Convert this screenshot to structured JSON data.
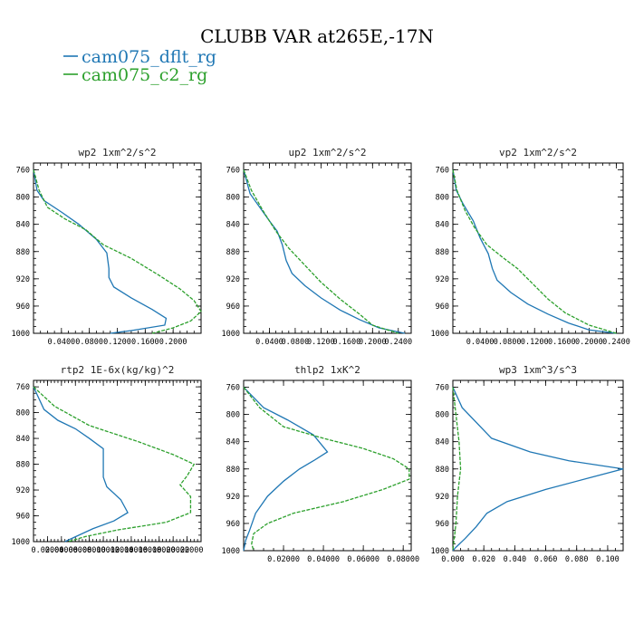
{
  "figure": {
    "title": "CLUBB VAR at265E,-17N",
    "legend": [
      {
        "label": "cam075_dflt_rg",
        "color": "#1f77b4",
        "dash": "solid"
      },
      {
        "label": "cam075_c2_rg",
        "color": "#2ca02c",
        "dash": "dashed"
      }
    ]
  },
  "chart_data": [
    {
      "type": "line",
      "title": "wp2  1xm^2/s^2",
      "xlim": [
        0,
        0.24
      ],
      "ylim": [
        1000,
        750
      ],
      "xticks": [
        0.04,
        0.08,
        0.12,
        0.16,
        0.2
      ],
      "xtick_labels": [
        "0.0400",
        "0.0800",
        "0.1200",
        "0.1600",
        "0.2000"
      ],
      "yticks": [
        760,
        800,
        840,
        880,
        920,
        960,
        1000
      ],
      "series": [
        {
          "name": "cam075_dflt_rg",
          "points": [
            [
              0.0,
              760
            ],
            [
              0.005,
              790
            ],
            [
              0.015,
              805
            ],
            [
              0.04,
              822
            ],
            [
              0.065,
              840
            ],
            [
              0.09,
              862
            ],
            [
              0.105,
              882
            ],
            [
              0.108,
              905
            ],
            [
              0.108,
              918
            ],
            [
              0.115,
              932
            ],
            [
              0.14,
              948
            ],
            [
              0.17,
              965
            ],
            [
              0.19,
              978
            ],
            [
              0.188,
              988
            ],
            [
              0.14,
              996
            ],
            [
              0.11,
              1000
            ]
          ]
        },
        {
          "name": "cam075_c2_rg",
          "points": [
            [
              0.0,
              760
            ],
            [
              0.008,
              790
            ],
            [
              0.02,
              815
            ],
            [
              0.045,
              832
            ],
            [
              0.075,
              848
            ],
            [
              0.1,
              870
            ],
            [
              0.14,
              890
            ],
            [
              0.18,
              915
            ],
            [
              0.21,
              935
            ],
            [
              0.23,
              952
            ],
            [
              0.24,
              968
            ],
            [
              0.225,
              982
            ],
            [
              0.2,
              992
            ],
            [
              0.17,
              1000
            ]
          ]
        }
      ]
    },
    {
      "type": "line",
      "title": "up2  1xm^2/s^2",
      "xlim": [
        0,
        0.26
      ],
      "ylim": [
        1000,
        750
      ],
      "xticks": [
        0.04,
        0.08,
        0.12,
        0.16,
        0.2,
        0.24
      ],
      "xtick_labels": [
        "0.0400",
        "0.0800",
        "0.1200",
        "0.1600",
        "0.2000",
        "0.2400"
      ],
      "yticks": [
        760,
        800,
        840,
        880,
        920,
        960,
        1000
      ],
      "series": [
        {
          "name": "cam075_dflt_rg",
          "points": [
            [
              0.0,
              760
            ],
            [
              0.01,
              795
            ],
            [
              0.025,
              815
            ],
            [
              0.04,
              835
            ],
            [
              0.052,
              850
            ],
            [
              0.06,
              870
            ],
            [
              0.066,
              893
            ],
            [
              0.075,
              912
            ],
            [
              0.095,
              930
            ],
            [
              0.12,
              948
            ],
            [
              0.15,
              966
            ],
            [
              0.18,
              980
            ],
            [
              0.21,
              992
            ],
            [
              0.25,
              1000
            ]
          ]
        },
        {
          "name": "cam075_c2_rg",
          "points": [
            [
              0.0,
              760
            ],
            [
              0.012,
              790
            ],
            [
              0.03,
              820
            ],
            [
              0.05,
              850
            ],
            [
              0.07,
              875
            ],
            [
              0.095,
              900
            ],
            [
              0.12,
              925
            ],
            [
              0.15,
              950
            ],
            [
              0.18,
              972
            ],
            [
              0.2,
              988
            ],
            [
              0.24,
              1000
            ]
          ]
        }
      ]
    },
    {
      "type": "line",
      "title": "vp2  1xm^2/s^2",
      "xlim": [
        0,
        0.25
      ],
      "ylim": [
        1000,
        750
      ],
      "xticks": [
        0.04,
        0.08,
        0.12,
        0.16,
        0.2,
        0.24
      ],
      "xtick_labels": [
        "0.0400",
        "0.0800",
        "0.1200",
        "0.1600",
        "0.2000",
        "0.2400"
      ],
      "yticks": [
        760,
        800,
        840,
        880,
        920,
        960,
        1000
      ],
      "series": [
        {
          "name": "cam075_dflt_rg",
          "points": [
            [
              0.0,
              760
            ],
            [
              0.005,
              790
            ],
            [
              0.015,
              810
            ],
            [
              0.03,
              835
            ],
            [
              0.04,
              860
            ],
            [
              0.052,
              883
            ],
            [
              0.058,
              905
            ],
            [
              0.065,
              922
            ],
            [
              0.085,
              940
            ],
            [
              0.11,
              957
            ],
            [
              0.14,
              972
            ],
            [
              0.17,
              985
            ],
            [
              0.2,
              995
            ],
            [
              0.24,
              1000
            ]
          ]
        },
        {
          "name": "cam075_c2_rg",
          "points": [
            [
              0.0,
              760
            ],
            [
              0.006,
              790
            ],
            [
              0.018,
              820
            ],
            [
              0.032,
              845
            ],
            [
              0.05,
              870
            ],
            [
              0.075,
              890
            ],
            [
              0.095,
              905
            ],
            [
              0.115,
              925
            ],
            [
              0.14,
              950
            ],
            [
              0.165,
              970
            ],
            [
              0.2,
              988
            ],
            [
              0.24,
              1000
            ]
          ]
        }
      ]
    },
    {
      "type": "line",
      "title": "rtp2  1E-6x(kg/kg)^2",
      "xlim": [
        0,
        0.24
      ],
      "ylim": [
        1000,
        750
      ],
      "xticks": [
        0.02,
        0.04,
        0.06,
        0.08,
        0.1,
        0.12,
        0.14,
        0.16,
        0.18,
        0.2,
        0.22
      ],
      "xtick_labels": [
        "0.02000",
        "0.04000",
        "0.06000",
        "0.08000",
        "0.10000",
        "0.12000",
        "0.14000",
        "0.16000",
        "0.18000",
        "0.20000",
        "0.22000"
      ],
      "yticks": [
        760,
        800,
        840,
        880,
        920,
        960,
        1000
      ],
      "series": [
        {
          "name": "cam075_dflt_rg",
          "points": [
            [
              0.0,
              760
            ],
            [
              0.015,
              795
            ],
            [
              0.035,
              812
            ],
            [
              0.06,
              825
            ],
            [
              0.08,
              840
            ],
            [
              0.1,
              856
            ],
            [
              0.1,
              875
            ],
            [
              0.1,
              900
            ],
            [
              0.105,
              915
            ],
            [
              0.125,
              935
            ],
            [
              0.135,
              955
            ],
            [
              0.115,
              968
            ],
            [
              0.085,
              980
            ],
            [
              0.065,
              990
            ],
            [
              0.045,
              1000
            ]
          ]
        },
        {
          "name": "cam075_c2_rg",
          "points": [
            [
              0.0,
              760
            ],
            [
              0.03,
              790
            ],
            [
              0.08,
              820
            ],
            [
              0.15,
              845
            ],
            [
              0.2,
              865
            ],
            [
              0.23,
              880
            ],
            [
              0.22,
              898
            ],
            [
              0.21,
              912
            ],
            [
              0.225,
              930
            ],
            [
              0.225,
              955
            ],
            [
              0.19,
              970
            ],
            [
              0.12,
              982
            ],
            [
              0.075,
              992
            ],
            [
              0.05,
              1000
            ]
          ]
        }
      ]
    },
    {
      "type": "line",
      "title": "thlp2  1xK^2",
      "xlim": [
        0,
        0.084
      ],
      "ylim": [
        1000,
        750
      ],
      "xticks": [
        0.02,
        0.04,
        0.06,
        0.08
      ],
      "xtick_labels": [
        "0.02000",
        "0.04000",
        "0.06000",
        "0.08000"
      ],
      "yticks": [
        760,
        800,
        840,
        880,
        920,
        960,
        1000
      ],
      "series": [
        {
          "name": "cam075_dflt_rg",
          "points": [
            [
              0.0,
              760
            ],
            [
              0.01,
              790
            ],
            [
              0.022,
              808
            ],
            [
              0.035,
              830
            ],
            [
              0.042,
              855
            ],
            [
              0.035,
              868
            ],
            [
              0.028,
              880
            ],
            [
              0.02,
              898
            ],
            [
              0.012,
              920
            ],
            [
              0.006,
              945
            ],
            [
              0.003,
              970
            ],
            [
              0.001,
              985
            ],
            [
              0.0,
              1000
            ]
          ]
        },
        {
          "name": "cam075_c2_rg",
          "points": [
            [
              0.0,
              760
            ],
            [
              0.008,
              790
            ],
            [
              0.02,
              818
            ],
            [
              0.04,
              835
            ],
            [
              0.06,
              850
            ],
            [
              0.075,
              865
            ],
            [
              0.083,
              880
            ],
            [
              0.083,
              895
            ],
            [
              0.07,
              910
            ],
            [
              0.05,
              928
            ],
            [
              0.025,
              945
            ],
            [
              0.012,
              960
            ],
            [
              0.005,
              975
            ],
            [
              0.004,
              990
            ],
            [
              0.005,
              1000
            ]
          ]
        }
      ]
    },
    {
      "type": "line",
      "title": "wp3  1xm^3/s^3",
      "xlim": [
        0,
        0.11
      ],
      "ylim": [
        1000,
        750
      ],
      "xticks": [
        0,
        0.02,
        0.04,
        0.06,
        0.08,
        0.1
      ],
      "xtick_labels": [
        "0.000",
        "0.020",
        "0.040",
        "0.060",
        "0.080",
        "0.100"
      ],
      "yticks": [
        760,
        800,
        840,
        880,
        920,
        960,
        1000
      ],
      "series": [
        {
          "name": "cam075_dflt_rg",
          "points": [
            [
              0.0,
              760
            ],
            [
              0.006,
              790
            ],
            [
              0.025,
              835
            ],
            [
              0.05,
              855
            ],
            [
              0.075,
              868
            ],
            [
              0.11,
              880
            ],
            [
              0.09,
              892
            ],
            [
              0.06,
              910
            ],
            [
              0.035,
              928
            ],
            [
              0.022,
              945
            ],
            [
              0.015,
              965
            ],
            [
              0.008,
              982
            ],
            [
              0.002,
              995
            ],
            [
              0.0,
              1000
            ]
          ]
        },
        {
          "name": "cam075_c2_rg",
          "points": [
            [
              0.0,
              760
            ],
            [
              0.002,
              800
            ],
            [
              0.004,
              840
            ],
            [
              0.005,
              880
            ],
            [
              0.003,
              920
            ],
            [
              0.002,
              960
            ],
            [
              0.0,
              1000
            ]
          ]
        }
      ]
    }
  ]
}
